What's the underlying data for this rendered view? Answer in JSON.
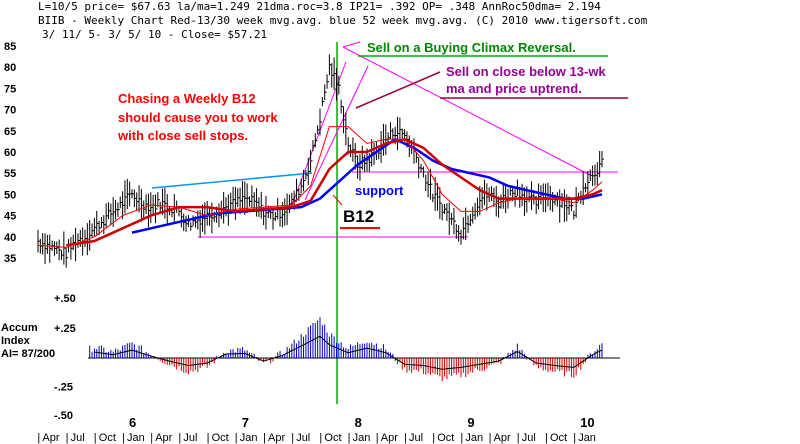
{
  "header": {
    "line1": "L=10/5  price= $67.63  la/ma=1.249 21dma.roc=3.8 IP21= .392 OP= .348 AnnRoc50dma= 2.194",
    "line2": "BIIB  - Weekly Chart  Red-13/30 week mvg.avg.  blue 52 week mvg.avg.  (C) 2010 www.tigersoft.com",
    "line3": "3/ 11/ 5- 3/ 5/ 10 -     Close= $57.21"
  },
  "indicator": {
    "label_line1": "Accum",
    "label_line2": "Index",
    "label_line3": "AI= 87/200"
  },
  "annotations": {
    "sell_climax": "Sell on a Buying Climax Reversal.",
    "sell_close_1": "Sell on close below 13-wk",
    "sell_close_2": "ma and price uptrend.",
    "chasing_1": "Chasing a Weekly B12",
    "chasing_2": "should cause you to work",
    "chasing_3": "with close sell stops.",
    "support": "support",
    "b12": "B12"
  },
  "colors": {
    "price": "#000000",
    "ma13": "#ff0000",
    "ma30": "#cc0000",
    "ma52": "#0000ff",
    "accum_pos": "#0000cc",
    "accum_neg": "#cc0000",
    "trend_magenta": "#ff00ff",
    "trend_cyan": "#0099ee",
    "trend_maroon": "#990033",
    "buy_line": "#00aa00",
    "support_text": "#0000ff",
    "chasing_text": "#ff0000",
    "climax_text": "#008800",
    "close_text": "#990099"
  },
  "chart_data": [
    {
      "type": "line",
      "name": "price-panel",
      "y_ticks": [
        35,
        40,
        45,
        50,
        55,
        60,
        65,
        70,
        75,
        80,
        85
      ],
      "ylim": [
        33,
        87
      ],
      "x_year_labels": [
        "6",
        "7",
        "8",
        "9",
        "10"
      ],
      "x_month_labels": [
        "Apr",
        "Jul",
        "Oct",
        "Jan",
        "Apr",
        "Jul",
        "Oct",
        "Jan",
        "Apr",
        "Jul",
        "Oct",
        "Jan",
        "Apr",
        "Jul",
        "Oct",
        "Jan",
        "Apr",
        "Jul",
        "Oct",
        "Jan"
      ],
      "x_range": [
        "2005-03",
        "2010-03"
      ],
      "series": [
        {
          "role": "price",
          "x": [
            "2005-03",
            "2005-04",
            "2005-05",
            "2005-06",
            "2005-07",
            "2005-08",
            "2005-09",
            "2005-10",
            "2005-11",
            "2005-12",
            "2006-01",
            "2006-02",
            "2006-03",
            "2006-04",
            "2006-05",
            "2006-06",
            "2006-07",
            "2006-08",
            "2006-09",
            "2006-10",
            "2006-11",
            "2006-12",
            "2007-01",
            "2007-02",
            "2007-03",
            "2007-04",
            "2007-05",
            "2007-06",
            "2007-07",
            "2007-08",
            "2007-09",
            "2007-10",
            "2007-11",
            "2007-12",
            "2008-01",
            "2008-02",
            "2008-03",
            "2008-04",
            "2008-05",
            "2008-06",
            "2008-07",
            "2008-08",
            "2008-09",
            "2008-10",
            "2008-11",
            "2008-12",
            "2009-01",
            "2009-02",
            "2009-03",
            "2009-04",
            "2009-05",
            "2009-06",
            "2009-07",
            "2009-08",
            "2009-09",
            "2009-10",
            "2009-11",
            "2009-12",
            "2010-01",
            "2010-02",
            "2010-03"
          ],
          "values": [
            39,
            38,
            37,
            36,
            39,
            40,
            42,
            44,
            46,
            48,
            50,
            48,
            47,
            48,
            47,
            46,
            43,
            44,
            45,
            46,
            47,
            48,
            49,
            48,
            46,
            45,
            46,
            48,
            52,
            58,
            68,
            80,
            75,
            62,
            57,
            58,
            60,
            63,
            65,
            64,
            60,
            55,
            50,
            47,
            44,
            41,
            45,
            49,
            50,
            48,
            50,
            51,
            49,
            48,
            50,
            49,
            48,
            46,
            52,
            55,
            57.2
          ]
        },
        {
          "role": "ma13",
          "x": [
            "2005-03",
            "2005-06",
            "2005-09",
            "2005-12",
            "2006-03",
            "2006-06",
            "2006-09",
            "2006-12",
            "2007-03",
            "2007-06",
            "2007-08",
            "2007-10",
            "2007-12",
            "2008-02",
            "2008-04",
            "2008-06",
            "2008-08",
            "2008-10",
            "2008-12",
            "2009-02",
            "2009-04",
            "2009-06",
            "2009-08",
            "2009-10",
            "2009-12",
            "2010-02",
            "2010-03"
          ],
          "values": [
            38,
            37.5,
            40,
            45,
            47.5,
            47,
            45,
            46.5,
            47,
            47.5,
            52,
            66,
            66,
            62,
            63,
            63,
            58,
            50,
            46,
            46,
            48,
            49,
            49,
            49,
            48,
            51,
            53
          ]
        },
        {
          "role": "ma30",
          "x": [
            "2005-06",
            "2005-09",
            "2005-12",
            "2006-03",
            "2006-06",
            "2006-09",
            "2006-12",
            "2007-03",
            "2007-06",
            "2007-08",
            "2007-10",
            "2007-12",
            "2008-02",
            "2008-04",
            "2008-06",
            "2008-08",
            "2008-10",
            "2008-12",
            "2009-02",
            "2009-04",
            "2009-06",
            "2009-08",
            "2009-10",
            "2009-12",
            "2010-02",
            "2010-03"
          ],
          "values": [
            38,
            39,
            42,
            45,
            47,
            47,
            46,
            46.5,
            47,
            48.5,
            56,
            60,
            60,
            62,
            63,
            61,
            57,
            54,
            51,
            49,
            49,
            49,
            49,
            49,
            50,
            51
          ]
        },
        {
          "role": "ma52",
          "x": [
            "2006-01",
            "2006-04",
            "2006-07",
            "2006-10",
            "2007-01",
            "2007-04",
            "2007-07",
            "2007-09",
            "2007-11",
            "2008-01",
            "2008-03",
            "2008-05",
            "2008-07",
            "2008-09",
            "2008-11",
            "2009-01",
            "2009-03",
            "2009-05",
            "2009-07",
            "2009-09",
            "2009-11",
            "2010-01",
            "2010-03"
          ],
          "values": [
            41,
            42.5,
            44,
            45.5,
            46,
            46.5,
            47,
            49,
            53,
            57,
            60,
            63,
            61,
            58,
            56,
            55,
            54,
            52,
            51,
            50,
            49,
            49,
            50
          ]
        }
      ]
    },
    {
      "type": "bar",
      "name": "accumulation-index",
      "y_ticks": [
        "+.50",
        "+.25",
        "-.25",
        "-.50"
      ],
      "ylim": [
        -0.5,
        0.5
      ],
      "x": [
        "2005-03",
        "2005-05",
        "2005-07",
        "2005-09",
        "2005-11",
        "2006-01",
        "2006-03",
        "2006-05",
        "2006-07",
        "2006-09",
        "2006-11",
        "2007-01",
        "2007-03",
        "2007-05",
        "2007-07",
        "2007-09",
        "2007-10",
        "2007-12",
        "2008-02",
        "2008-04",
        "2008-06",
        "2008-08",
        "2008-10",
        "2008-12",
        "2009-02",
        "2009-04",
        "2009-06",
        "2009-08",
        "2009-10",
        "2009-12",
        "2010-02",
        "2010-03"
      ],
      "values": [
        0.05,
        0.07,
        0.03,
        0.09,
        0.05,
        0.12,
        0.03,
        -0.05,
        -0.12,
        -0.08,
        0.06,
        0.07,
        -0.05,
        0.04,
        0.18,
        0.33,
        0.2,
        0.08,
        0.15,
        0.08,
        -0.1,
        -0.12,
        -0.18,
        -0.15,
        -0.1,
        -0.05,
        0.1,
        -0.08,
        -0.12,
        -0.15,
        0.05,
        0.12
      ]
    }
  ]
}
